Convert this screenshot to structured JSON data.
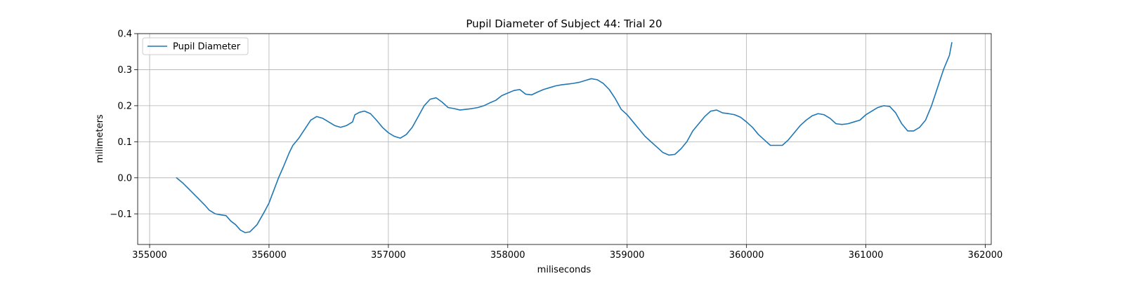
{
  "chart_data": {
    "type": "line",
    "title": "Pupil Diameter of Subject 44: Trial 20",
    "xlabel": "miliseconds",
    "ylabel": "milimeters",
    "xlim": [
      354900,
      362050
    ],
    "ylim": [
      -0.185,
      0.4
    ],
    "xticks": [
      355000,
      356000,
      357000,
      358000,
      359000,
      360000,
      361000,
      362000
    ],
    "yticks": [
      -0.1,
      0.0,
      0.1,
      0.2,
      0.3,
      0.4
    ],
    "xtick_labels": [
      "355000",
      "356000",
      "357000",
      "358000",
      "359000",
      "360000",
      "361000",
      "362000"
    ],
    "ytick_labels": [
      "−0.1",
      "0.0",
      "0.1",
      "0.2",
      "0.3",
      "0.4"
    ],
    "grid": true,
    "legend_position": "top-left",
    "series": [
      {
        "name": "Pupil Diameter",
        "color": "#1f77b4",
        "x": [
          355225,
          355280,
          355340,
          355400,
          355460,
          355500,
          355550,
          355600,
          355640,
          355680,
          355720,
          355760,
          355800,
          355840,
          355900,
          355960,
          356000,
          356040,
          356080,
          356120,
          356170,
          356200,
          356250,
          356300,
          356350,
          356400,
          356450,
          356500,
          356550,
          356600,
          356650,
          356700,
          356720,
          356760,
          356800,
          356850,
          356900,
          356950,
          357000,
          357050,
          357100,
          357150,
          357200,
          357250,
          357300,
          357350,
          357400,
          357450,
          357500,
          357550,
          357600,
          357650,
          357700,
          357750,
          357800,
          357850,
          357900,
          357950,
          358000,
          358050,
          358100,
          358150,
          358200,
          358250,
          358300,
          358350,
          358400,
          358450,
          358500,
          358550,
          358600,
          358650,
          358700,
          358750,
          358800,
          358850,
          358900,
          358950,
          359000,
          359050,
          359100,
          359150,
          359200,
          359250,
          359300,
          359350,
          359400,
          359450,
          359500,
          359550,
          359600,
          359650,
          359700,
          359750,
          359800,
          359850,
          359900,
          359950,
          360000,
          360050,
          360100,
          360150,
          360200,
          360250,
          360300,
          360350,
          360400,
          360450,
          360500,
          360550,
          360600,
          360650,
          360700,
          360750,
          360800,
          360850,
          360900,
          360950,
          361000,
          361050,
          361100,
          361150,
          361200,
          361250,
          361300,
          361350,
          361400,
          361450,
          361500,
          361550,
          361600,
          361650,
          361700,
          361720
        ],
        "y": [
          0.0,
          -0.015,
          -0.035,
          -0.055,
          -0.075,
          -0.09,
          -0.1,
          -0.103,
          -0.105,
          -0.12,
          -0.13,
          -0.145,
          -0.152,
          -0.15,
          -0.13,
          -0.095,
          -0.07,
          -0.035,
          0.0,
          0.03,
          0.07,
          0.09,
          0.11,
          0.135,
          0.16,
          0.17,
          0.165,
          0.155,
          0.145,
          0.14,
          0.145,
          0.155,
          0.175,
          0.182,
          0.185,
          0.178,
          0.16,
          0.14,
          0.125,
          0.115,
          0.11,
          0.12,
          0.14,
          0.17,
          0.2,
          0.218,
          0.222,
          0.21,
          0.195,
          0.192,
          0.188,
          0.19,
          0.192,
          0.195,
          0.2,
          0.208,
          0.215,
          0.228,
          0.235,
          0.242,
          0.245,
          0.232,
          0.23,
          0.238,
          0.245,
          0.25,
          0.255,
          0.258,
          0.26,
          0.262,
          0.265,
          0.27,
          0.275,
          0.272,
          0.262,
          0.245,
          0.22,
          0.19,
          0.175,
          0.155,
          0.135,
          0.115,
          0.1,
          0.085,
          0.07,
          0.063,
          0.065,
          0.08,
          0.1,
          0.13,
          0.15,
          0.17,
          0.185,
          0.188,
          0.18,
          0.178,
          0.175,
          0.168,
          0.155,
          0.14,
          0.12,
          0.105,
          0.09,
          0.09,
          0.09,
          0.105,
          0.125,
          0.145,
          0.16,
          0.172,
          0.178,
          0.175,
          0.165,
          0.15,
          0.148,
          0.15,
          0.155,
          0.16,
          0.175,
          0.185,
          0.195,
          0.2,
          0.198,
          0.18,
          0.15,
          0.13,
          0.13,
          0.14,
          0.16,
          0.2,
          0.25,
          0.3,
          0.34,
          0.375
        ]
      }
    ]
  }
}
